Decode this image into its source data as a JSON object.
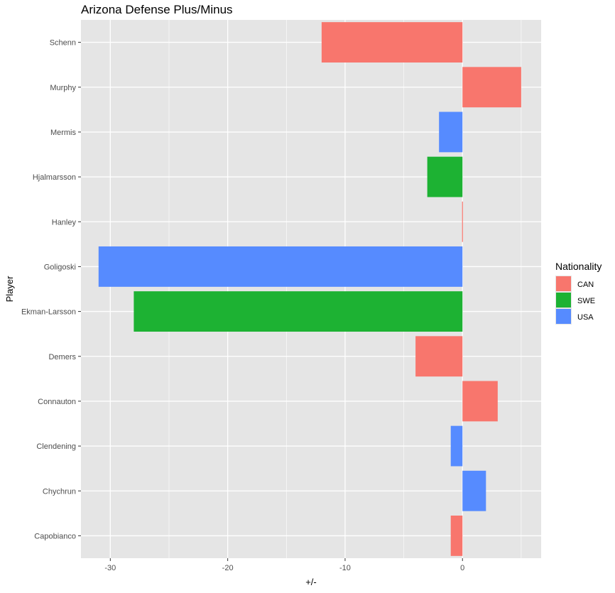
{
  "chart_data": {
    "type": "bar",
    "orientation": "horizontal",
    "title": "Arizona Defense Plus/Minus",
    "xlabel": "+/-",
    "ylabel": "Player",
    "xlim": [
      -32.5,
      6.7
    ],
    "xticks": [
      -30,
      -20,
      -10,
      0
    ],
    "grid": true,
    "legend": {
      "title": "Nationality",
      "position": "right",
      "entries": [
        {
          "name": "CAN",
          "color": "#F8766D"
        },
        {
          "name": "SWE",
          "color": "#1DB233"
        },
        {
          "name": "USA",
          "color": "#568BFF"
        }
      ]
    },
    "categories": [
      "Schenn",
      "Murphy",
      "Mermis",
      "Hjalmarsson",
      "Hanley",
      "Goligoski",
      "Ekman-Larsson",
      "Demers",
      "Connauton",
      "Clendening",
      "Chychrun",
      "Capobianco"
    ],
    "values": [
      -12,
      5,
      -2,
      -3,
      0,
      -31,
      -28,
      -4,
      3,
      -1,
      2,
      -1
    ],
    "nationality": [
      "CAN",
      "CAN",
      "USA",
      "SWE",
      "CAN",
      "USA",
      "SWE",
      "CAN",
      "CAN",
      "USA",
      "USA",
      "CAN"
    ]
  },
  "colors": {
    "panel_bg": "#E5E5E5",
    "grid": "#FFFFFF",
    "CAN": "#F8766D",
    "SWE": "#1DB233",
    "USA": "#568BFF"
  }
}
